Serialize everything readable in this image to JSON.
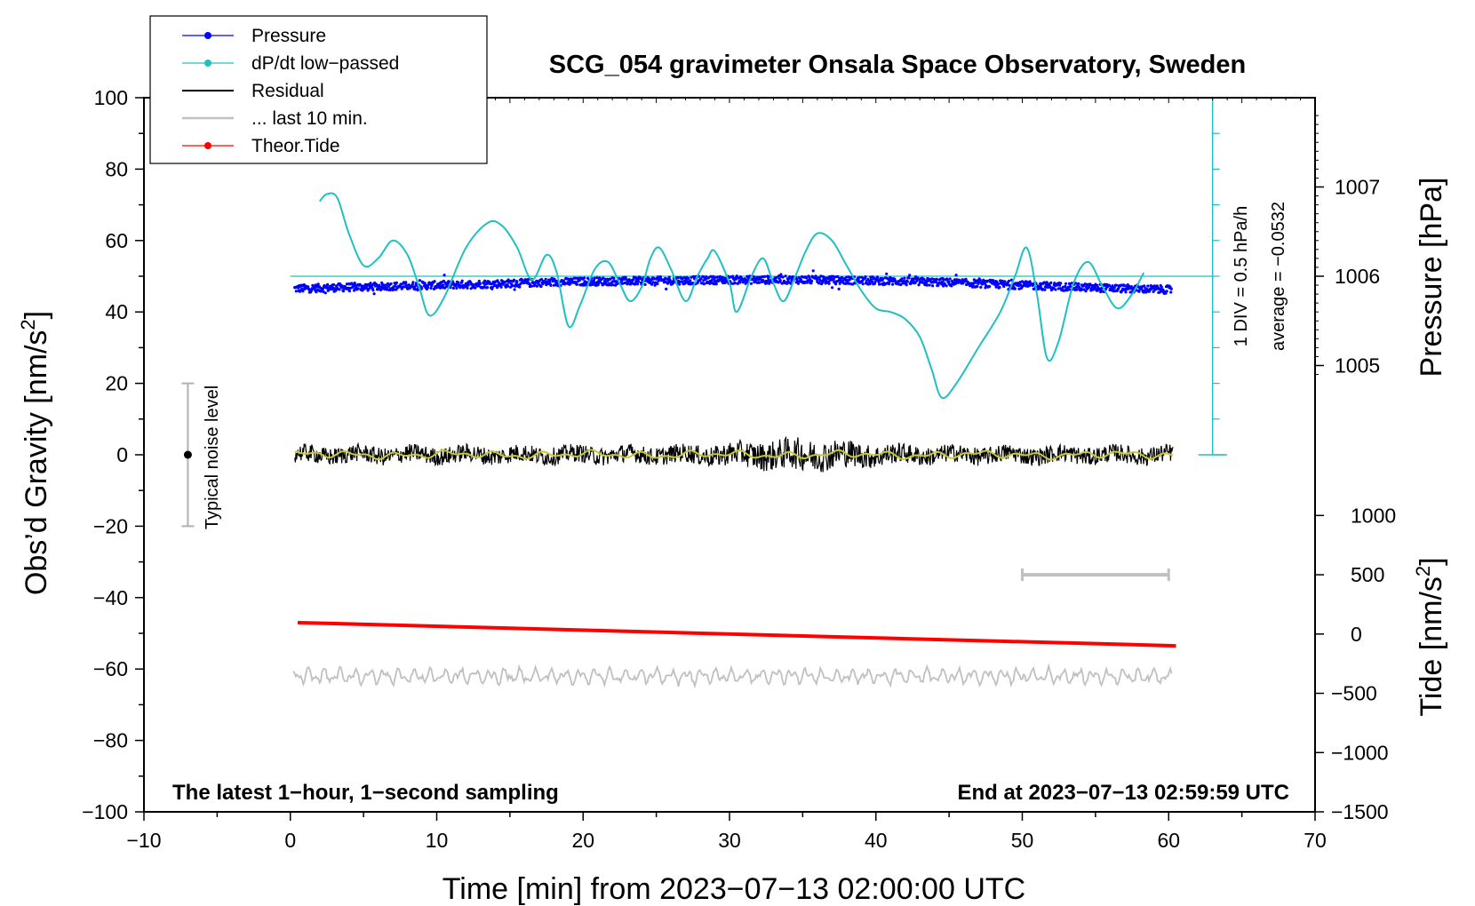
{
  "chart_data": {
    "type": "line",
    "title": "SCG_054 gravimeter Onsala Space Observatory, Sweden",
    "xlabel": "Time [min] from 2023−07−13 02:00:00 UTC",
    "ylabel_main": "Obs’d Gravity [nm/s",
    "ylabel_sup": "2",
    "ylabel_close": "]",
    "ylabel_pressure": "Pressure [hPa]",
    "ylabel_tide": "Tide [nm/s",
    "ylabel_tide_sup": "2",
    "ylabel_tide_close": "]",
    "xlim": [
      -10,
      70
    ],
    "ylim": [
      -100,
      100
    ],
    "x_ticks": [
      -10,
      0,
      10,
      20,
      30,
      40,
      50,
      60,
      70
    ],
    "x_tick_labels": [
      "−10",
      "0",
      "10",
      "20",
      "30",
      "40",
      "50",
      "60",
      "70"
    ],
    "y_ticks": [
      -100,
      -80,
      -60,
      -40,
      -20,
      0,
      20,
      40,
      60,
      80,
      100
    ],
    "y_tick_labels": [
      "−100",
      "−80",
      "−60",
      "−40",
      "−20",
      "0",
      "20",
      "40",
      "60",
      "80",
      "100"
    ],
    "pressure_ticks": [
      1005,
      1006,
      1007
    ],
    "pressure_tick_labels": [
      "1005",
      "1006",
      "1007"
    ],
    "tide_ticks": [
      -1500,
      -1000,
      -500,
      0,
      500,
      1000
    ],
    "tide_tick_labels": [
      "−1500",
      "−1000",
      "−500",
      "0",
      "500",
      "1000"
    ],
    "legend": [
      "Pressure",
      "dP/dt low−passed",
      "Residual",
      "... last 10 min.",
      "Theor.Tide"
    ],
    "legend_placement": "top-left",
    "annotations": {
      "noise": "Typical noise level",
      "div": "1 DIV = 0.5 hPa/h",
      "average": "average = −0.0532",
      "bottom_left": "The latest 1−hour, 1−second sampling",
      "bottom_right": "End at 2023−07−13 02:59:59 UTC"
    },
    "series": [
      {
        "name": "Pressure",
        "color": "#0000ff",
        "display_range": [
          37.5,
          62.5
        ],
        "x": [
          0,
          5,
          10,
          15,
          20,
          25,
          30,
          35,
          40,
          45,
          50,
          55,
          60
        ],
        "values": [
          1005.86,
          1005.88,
          1005.9,
          1005.92,
          1005.94,
          1005.95,
          1005.96,
          1005.96,
          1005.95,
          1005.93,
          1005.9,
          1005.87,
          1005.85
        ]
      },
      {
        "name": "dP/dt low-passed",
        "color": "#20c0c0",
        "baseline": 50,
        "x": [
          2,
          2.5,
          3.2,
          4,
          5,
          6,
          7,
          8,
          8.8,
          9.5,
          10.5,
          12,
          13.5,
          14.5,
          15.5,
          16.5,
          17.5,
          18.2,
          19,
          19.8,
          20.8,
          21.7,
          22.5,
          23.2,
          24,
          24.6,
          25.2,
          26,
          27,
          27.8,
          28.5,
          29,
          30,
          30.5,
          31.5,
          32.3,
          33,
          33.7,
          34.5,
          35.2,
          36,
          37,
          38,
          39,
          40,
          41,
          42,
          43,
          43.8,
          44.5,
          45.5,
          47,
          48.5,
          49.5,
          50.3,
          51,
          51.7,
          52.5,
          53.5,
          54.5,
          55.5,
          56.5,
          57.5,
          58.3
        ],
        "values": [
          71,
          73,
          72,
          62,
          53,
          55,
          60,
          56,
          47,
          39,
          44,
          58,
          65,
          64,
          58,
          49,
          56,
          51,
          36,
          42,
          52,
          54,
          48,
          43,
          47,
          55,
          58,
          52,
          43,
          50,
          55,
          57,
          48,
          40,
          50,
          55,
          48,
          43,
          50,
          57,
          62,
          60,
          53,
          46,
          41,
          40,
          38,
          33,
          24,
          16,
          20,
          30,
          40,
          50,
          58,
          45,
          27,
          32,
          48,
          54,
          47,
          41,
          45,
          51
        ]
      },
      {
        "name": "Residual",
        "color": "#000000",
        "x_range": [
          0,
          60
        ],
        "center": 0,
        "amplitude": 2.5
      },
      {
        "name": "Residual smoothed",
        "color": "#c8c832",
        "x_range": [
          0,
          60
        ],
        "center": 0
      },
      {
        "name": "... last 10 min.",
        "color": "#c0c0c0",
        "x_range": [
          0,
          60
        ],
        "center": -62,
        "amplitude": 2.5,
        "bar_x": [
          50,
          60
        ],
        "bar_y": 500
      },
      {
        "name": "Theor.Tide",
        "color": "#ff0000",
        "x": [
          0.5,
          60.5
        ],
        "values": [
          -47,
          -53.5
        ],
        "tide_units": [
          10,
          -110
        ]
      }
    ]
  }
}
